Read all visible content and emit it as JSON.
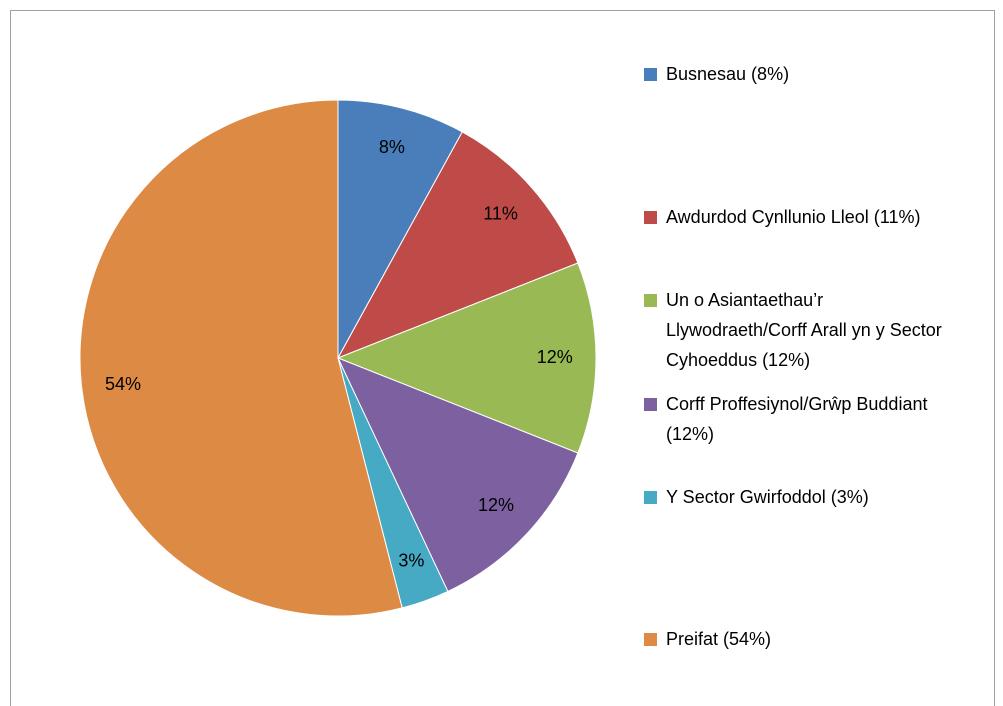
{
  "chart_data": {
    "type": "pie",
    "categories": [
      "Busnesau (8%)",
      "Awdurdod Cynllunio Lleol (11%)",
      "Un o Asiantaethau’r Llywodraeth/Corff Arall yn y Sector Cyhoeddus (12%)",
      "Corff Proffesiynol/Grŵp Buddiant (12%)",
      "Y Sector Gwirfoddol (3%)",
      "Preifat (54%)"
    ],
    "values": [
      8,
      11,
      12,
      12,
      3,
      54
    ],
    "value_labels": [
      "8%",
      "11%",
      "12%",
      "12%",
      "3%",
      "54%"
    ],
    "colors": [
      "#4a7ebb",
      "#be4b48",
      "#98b954",
      "#7d60a0",
      "#46aac5",
      "#dd8a45"
    ],
    "legend": "right"
  }
}
